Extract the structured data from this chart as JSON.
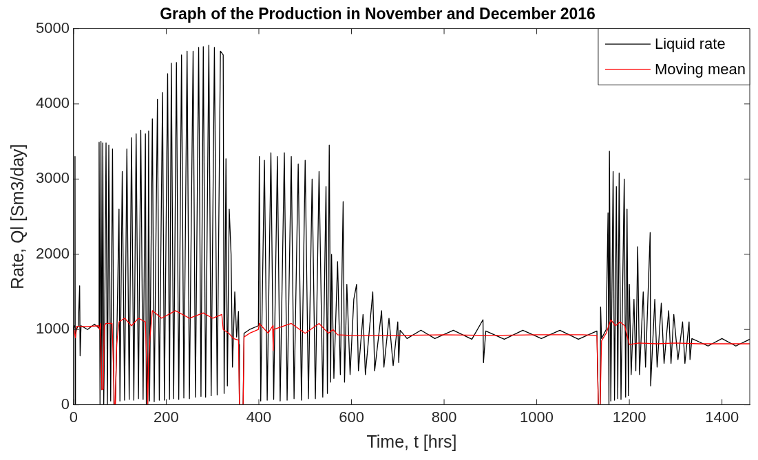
{
  "chart_data": {
    "type": "line",
    "title": "Graph of the Production in November and December 2016",
    "xlabel": "Time, t [hrs]",
    "ylabel": "Rate, Ql [Sm3/day]",
    "xlim": [
      0,
      1460
    ],
    "xticks": [
      0,
      200,
      400,
      600,
      800,
      1000,
      1200,
      1400
    ],
    "ylim": [
      0,
      5000
    ],
    "yticks": [
      0,
      1000,
      2000,
      3000,
      4000,
      5000
    ],
    "grid": false,
    "legend": "top right",
    "series": [
      {
        "name": "Liquid rate",
        "color": "#000000",
        "x": [
          0,
          2,
          3,
          3.5,
          4,
          6,
          10,
          13,
          14,
          16,
          30,
          45,
          54,
          55,
          57,
          59,
          61,
          63,
          65,
          67,
          70,
          73,
          76,
          80,
          84,
          87,
          90,
          93,
          98,
          100,
          105,
          110,
          115,
          120,
          125,
          130,
          135,
          140,
          145,
          150,
          155,
          157,
          160,
          162,
          164,
          170,
          174,
          181,
          185,
          192,
          196,
          203,
          207,
          211,
          216,
          222,
          227,
          233,
          238,
          245,
          250,
          258,
          263,
          270,
          275,
          280,
          285,
          292,
          297,
          304,
          310,
          317,
          323,
          325,
          329,
          332,
          336,
          340,
          343,
          348,
          352,
          356,
          357,
          358,
          366,
          368,
          380,
          399,
          401,
          404,
          412,
          418,
          426,
          432,
          440,
          446,
          455,
          461,
          470,
          476,
          485,
          492,
          500,
          507,
          515,
          522,
          530,
          538,
          545,
          548,
          552,
          555,
          557,
          562,
          570,
          576,
          582,
          585,
          590,
          597,
          605,
          611,
          615,
          625,
          630,
          646,
          650,
          665,
          670,
          681,
          690,
          700,
          702,
          705,
          720,
          750,
          780,
          820,
          860,
          884,
          885,
          890,
          930,
          970,
          1010,
          1050,
          1090,
          1130,
          1133,
          1137,
          1138,
          1140,
          1150,
          1154,
          1156,
          1157,
          1160,
          1165,
          1168,
          1172,
          1175,
          1178,
          1182,
          1189,
          1192,
          1195,
          1198,
          1200,
          1204,
          1210,
          1214,
          1218,
          1222,
          1230,
          1235,
          1245,
          1246,
          1255,
          1260,
          1269,
          1275,
          1285,
          1290,
          1296,
          1305,
          1315,
          1320,
          1329,
          1331,
          1335,
          1370,
          1400,
          1430,
          1460
        ],
        "values": [
          1000,
          1050,
          3300,
          0,
          900,
          1000,
          1050,
          1580,
          650,
          1050,
          1000,
          1070,
          1020,
          3490,
          0,
          3500,
          200,
          3480,
          0,
          1000,
          3480,
          0,
          3450,
          50,
          3400,
          0,
          0,
          800,
          2600,
          50,
          3100,
          60,
          3400,
          70,
          3550,
          60,
          3600,
          80,
          3650,
          70,
          3600,
          0,
          0,
          3640,
          50,
          3800,
          40,
          4060,
          60,
          4150,
          60,
          4400,
          70,
          4540,
          80,
          4550,
          70,
          4650,
          90,
          4700,
          80,
          4700,
          100,
          4750,
          110,
          4760,
          100,
          4780,
          120,
          4750,
          130,
          4700,
          4650,
          150,
          3270,
          250,
          2600,
          2000,
          500,
          1500,
          900,
          1240,
          800,
          0,
          0,
          950,
          1000,
          1050,
          3300,
          50,
          3250,
          60,
          3350,
          70,
          3300,
          50,
          3350,
          60,
          3300,
          80,
          3200,
          60,
          3250,
          80,
          3000,
          80,
          3100,
          100,
          2900,
          150,
          3450,
          300,
          2000,
          350,
          1900,
          400,
          2700,
          300,
          1600,
          400,
          1400,
          1600,
          450,
          1200,
          400,
          1500,
          450,
          1250,
          500,
          1150,
          520,
          1100,
          560,
          990,
          880,
          990,
          880,
          990,
          870,
          1130,
          560,
          980,
          870,
          990,
          880,
          990,
          870,
          980,
          0,
          0,
          1300,
          880,
          1000,
          2550,
          0,
          3370,
          50,
          3100,
          60,
          2900,
          80,
          3080,
          70,
          3000,
          100,
          2600,
          120,
          1600,
          400,
          1400,
          450,
          2100,
          400,
          1500,
          500,
          2290,
          250,
          1400,
          500,
          1350,
          550,
          1250,
          550,
          1200,
          600,
          1100,
          550,
          1100,
          600,
          880,
          780,
          880,
          780,
          870
        ]
      },
      {
        "name": "Moving mean",
        "color": "#ff0000",
        "x": [
          1,
          2,
          4,
          6,
          30,
          54,
          56,
          58,
          61,
          64,
          66,
          70,
          83,
          86,
          88,
          90,
          93,
          98,
          110,
          125,
          140,
          155,
          158,
          160,
          162,
          165,
          170,
          190,
          220,
          250,
          280,
          300,
          320,
          323,
          335,
          345,
          356,
          358,
          366,
          368,
          380,
          399,
          401,
          420,
          430,
          431,
          432,
          470,
          500,
          530,
          550,
          560,
          570,
          600,
          700,
          800,
          900,
          1000,
          1100,
          1130,
          1133,
          1137,
          1140,
          1150,
          1160,
          1170,
          1180,
          1190,
          1200,
          1220,
          1260,
          1300,
          1350,
          1460
        ],
        "values": [
          1000,
          950,
          890,
          1040,
          1040,
          1050,
          1000,
          1080,
          200,
          210,
          1050,
          1080,
          1080,
          500,
          0,
          0,
          800,
          1100,
          1150,
          1050,
          1150,
          1100,
          500,
          0,
          600,
          900,
          1250,
          1150,
          1250,
          1150,
          1220,
          1150,
          1200,
          1000,
          950,
          880,
          860,
          0,
          0,
          900,
          950,
          1000,
          1080,
          950,
          1050,
          720,
          1000,
          1080,
          950,
          1080,
          950,
          1000,
          930,
          920,
          920,
          930,
          920,
          930,
          930,
          920,
          0,
          0,
          850,
          950,
          1130,
          1050,
          1100,
          1050,
          800,
          820,
          810,
          820,
          810,
          810
        ]
      }
    ]
  }
}
